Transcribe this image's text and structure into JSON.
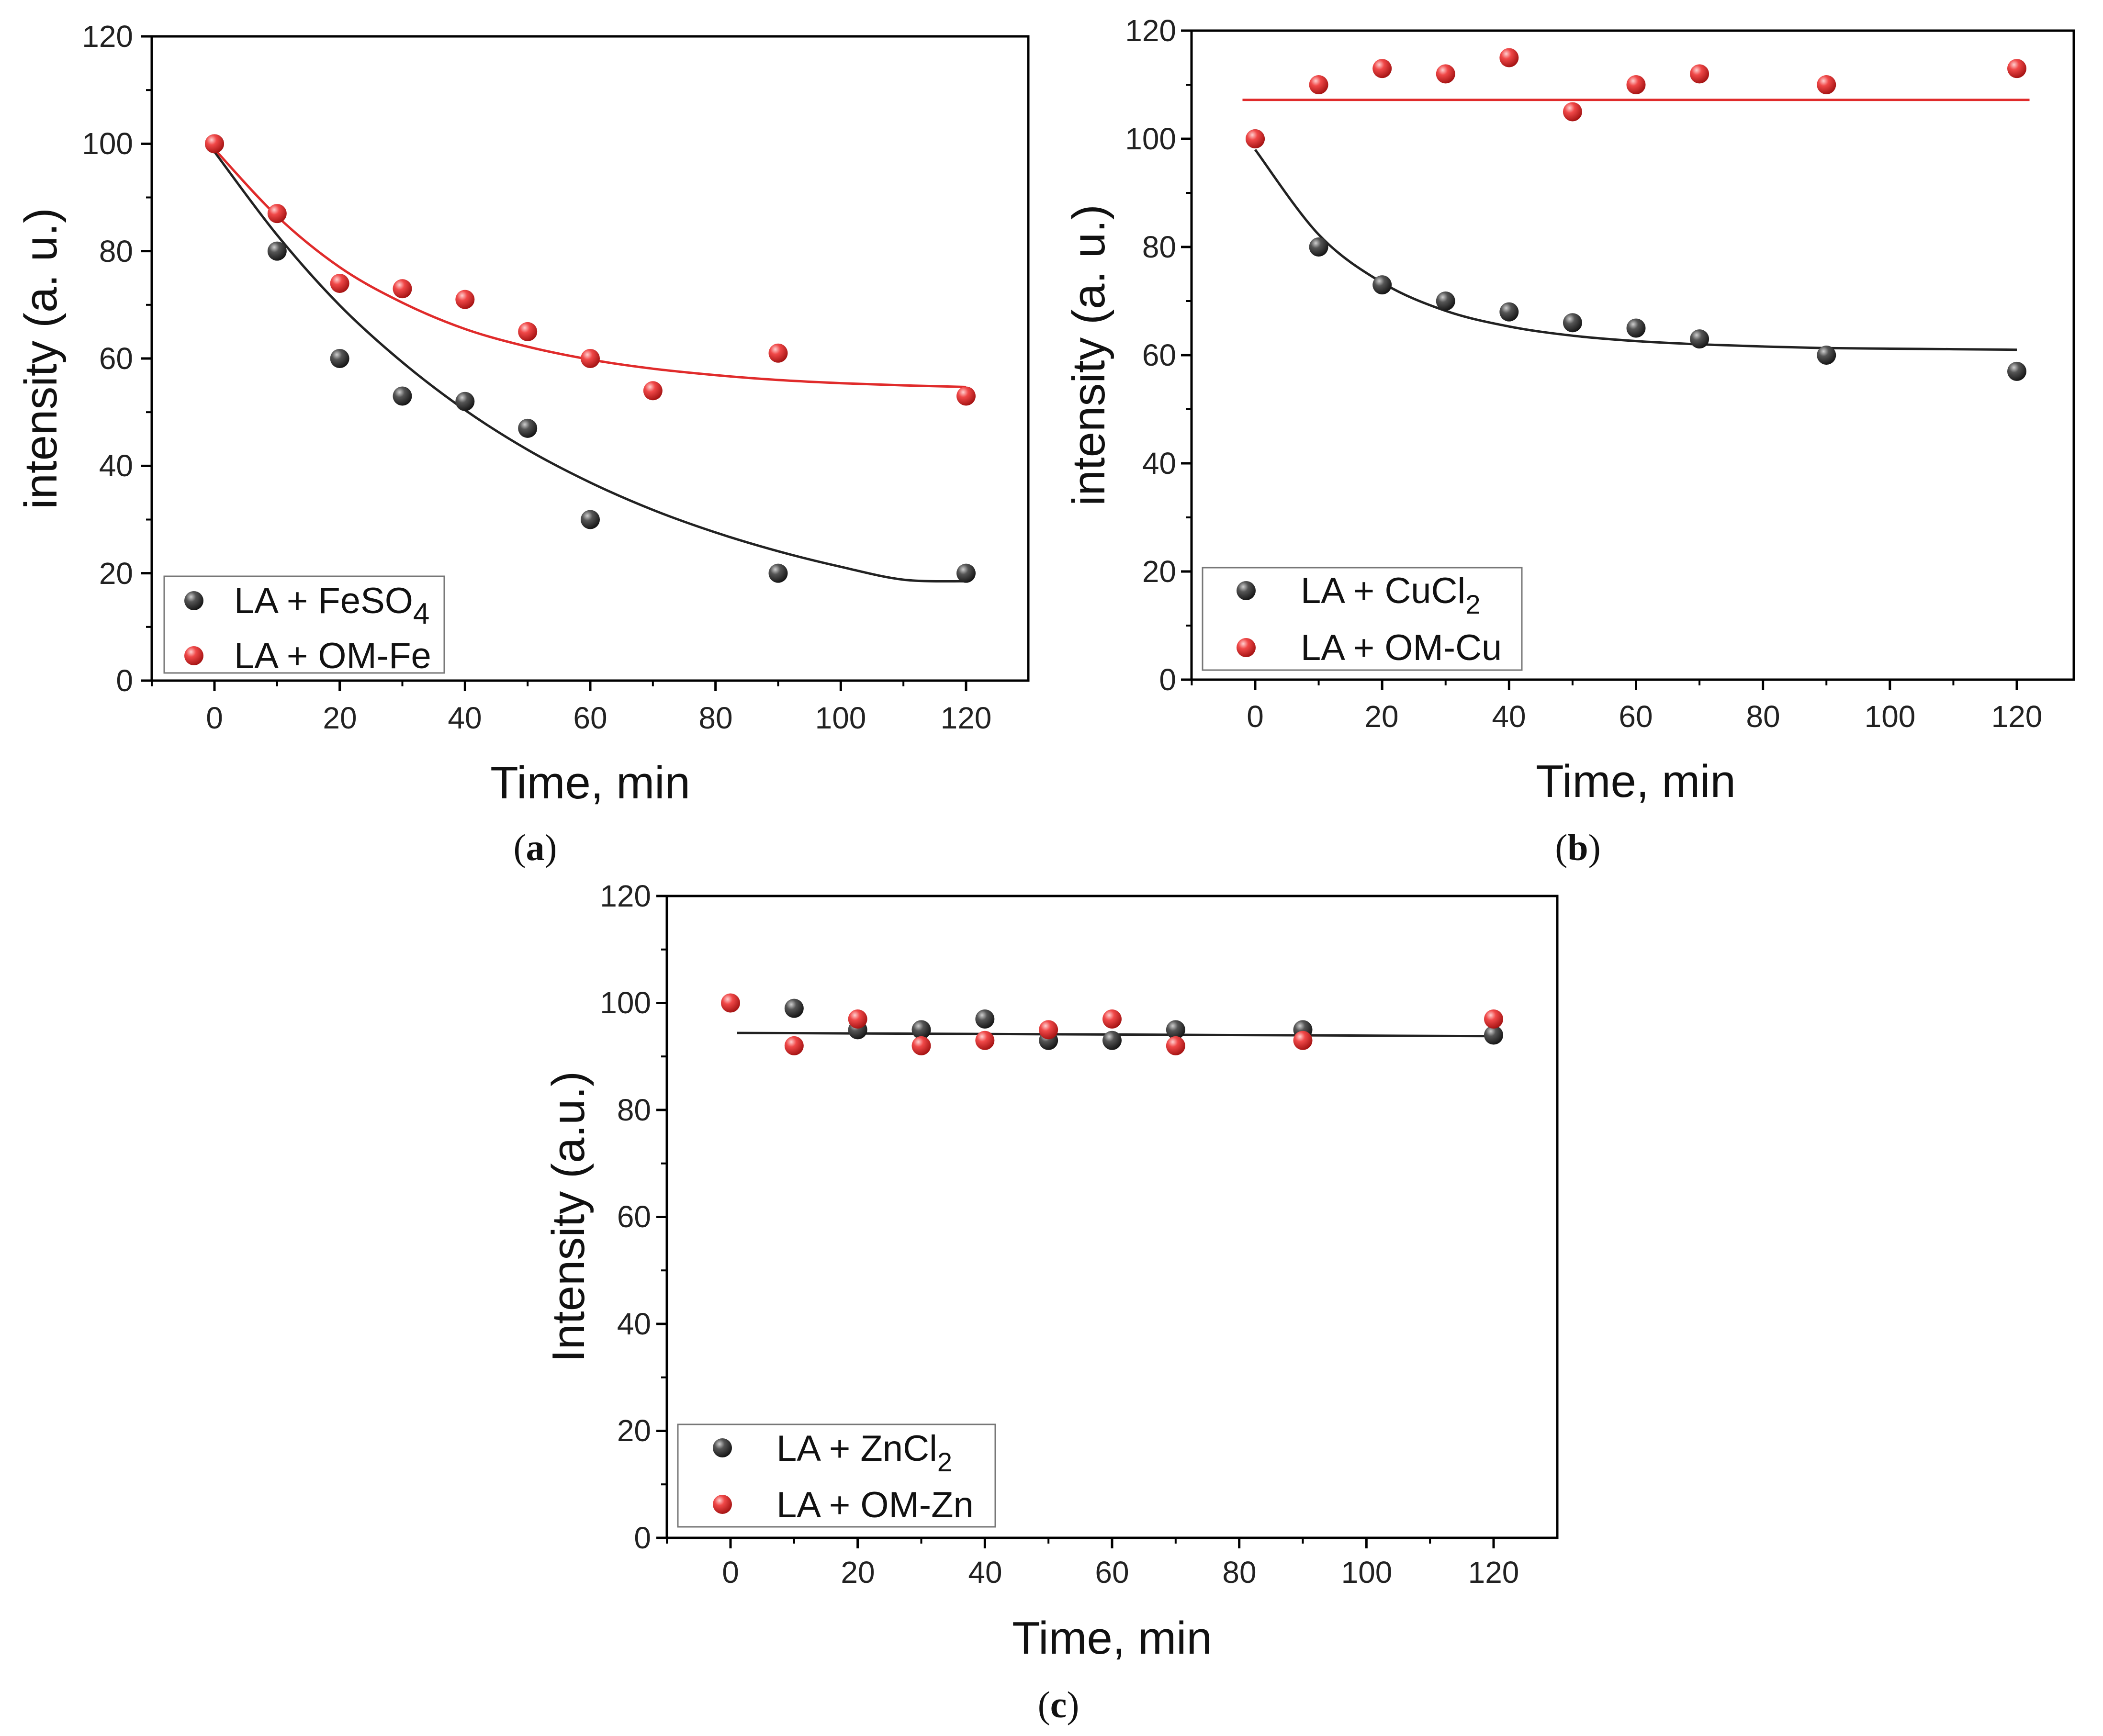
{
  "figure": {
    "colors": {
      "series_black": "#3a3a3a",
      "series_red": "#e8373d",
      "fit_black": "#222222",
      "fit_red": "#e02b2b",
      "axis": "#000000"
    }
  },
  "chart_data": [
    {
      "type": "scatter",
      "panel_label": "a",
      "title": "",
      "xlabel": "Time, min",
      "ylabel": "intensity (a. u.)",
      "xlim": [
        -10,
        130
      ],
      "ylim": [
        0,
        120
      ],
      "xticks": [
        "0",
        "20",
        "40",
        "60",
        "80",
        "100",
        "120"
      ],
      "yticks": [
        "0",
        "20",
        "40",
        "60",
        "80",
        "100",
        "120"
      ],
      "legend_position": "bottom-left",
      "series": [
        {
          "name": "LA + FeSO4",
          "legend_main": "LA + FeSO",
          "legend_sub": "4",
          "color": "#3a3a3a",
          "x": [
            0,
            10,
            20,
            30,
            40,
            50,
            60,
            90,
            120
          ],
          "y": [
            100,
            80,
            60,
            53,
            52,
            47,
            30,
            20,
            20
          ],
          "fit": {
            "type": "exponential",
            "x": [
              0,
              10,
              20,
              30,
              40,
              50,
              60,
              70,
              80,
              90,
              100,
              110,
              120
            ],
            "y": [
              98.5,
              83.0,
              69.9,
              59.3,
              50.4,
              43.0,
              36.9,
              31.8,
              27.6,
              24.1,
              21.2,
              18.8,
              18.5
            ]
          }
        },
        {
          "name": "LA + OM-Fe",
          "legend_main": "LA + OM-Fe",
          "legend_sub": "",
          "color": "#e8373d",
          "x": [
            0,
            10,
            20,
            30,
            40,
            50,
            60,
            70,
            90,
            120
          ],
          "y": [
            100,
            87,
            74,
            73,
            71,
            65,
            60,
            54,
            61,
            53
          ],
          "fit": {
            "type": "exponential",
            "x": [
              0,
              10,
              20,
              30,
              40,
              50,
              60,
              70,
              80,
              90,
              100,
              110,
              120
            ],
            "y": [
              99.0,
              86.5,
              77.0,
              70.4,
              65.5,
              62.2,
              59.8,
              58.1,
              56.9,
              56.0,
              55.4,
              55.0,
              54.7
            ]
          }
        }
      ]
    },
    {
      "type": "scatter",
      "panel_label": "b",
      "title": "",
      "xlabel": "Time, min",
      "ylabel": "intensity (a. u.)",
      "xlim": [
        -10,
        130
      ],
      "ylim": [
        0,
        120
      ],
      "xticks": [
        "0",
        "20",
        "40",
        "60",
        "80",
        "100",
        "120"
      ],
      "yticks": [
        "0",
        "20",
        "40",
        "60",
        "80",
        "100",
        "120"
      ],
      "legend_position": "bottom-left",
      "series": [
        {
          "name": "LA + CuCl2",
          "legend_main": "LA + CuCl",
          "legend_sub": "2",
          "color": "#3a3a3a",
          "x": [
            0,
            10,
            20,
            30,
            40,
            50,
            60,
            70,
            90,
            120
          ],
          "y": [
            100,
            80,
            73,
            70,
            68,
            66,
            65,
            63,
            60,
            57
          ],
          "fit": {
            "type": "exponential",
            "x": [
              0,
              10,
              20,
              30,
              40,
              50,
              60,
              70,
              80,
              90,
              100,
              110,
              120
            ],
            "y": [
              98.0,
              82.3,
              73.4,
              68.2,
              65.3,
              63.6,
              62.6,
              62.0,
              61.6,
              61.3,
              61.2,
              61.1,
              61.0
            ]
          }
        },
        {
          "name": "LA + OM-Cu",
          "legend_main": "LA + OM-Cu",
          "legend_sub": "",
          "color": "#e8373d",
          "x": [
            0,
            10,
            20,
            30,
            40,
            50,
            60,
            70,
            90,
            120
          ],
          "y": [
            100,
            110,
            113,
            112,
            115,
            105,
            110,
            112,
            110,
            113
          ],
          "fit": {
            "type": "constant",
            "x": [
              -2,
              122
            ],
            "y": [
              107.2,
              107.2
            ]
          }
        }
      ]
    },
    {
      "type": "scatter",
      "panel_label": "c",
      "title": "",
      "xlabel": "Time, min",
      "ylabel": "Intensity (a.u.)",
      "xlim": [
        -10,
        130
      ],
      "ylim": [
        0,
        120
      ],
      "xticks": [
        "0",
        "20",
        "40",
        "60",
        "80",
        "100",
        "120"
      ],
      "yticks": [
        "0",
        "20",
        "40",
        "60",
        "80",
        "100",
        "120"
      ],
      "legend_position": "bottom-left",
      "series": [
        {
          "name": "LA + ZnCl2",
          "legend_main": "LA + ZnCl",
          "legend_sub": "2",
          "color": "#3a3a3a",
          "x": [
            10,
            20,
            30,
            40,
            50,
            60,
            70,
            90,
            120
          ],
          "y": [
            99,
            95,
            95,
            97,
            93,
            93,
            95,
            95,
            94
          ],
          "fit": {
            "type": "linear",
            "x": [
              1,
              120
            ],
            "y": [
              94.4,
              93.8
            ]
          }
        },
        {
          "name": "LA + OM-Zn",
          "legend_main": "LA + OM-Zn",
          "legend_sub": "",
          "color": "#e8373d",
          "x": [
            0,
            10,
            20,
            30,
            40,
            50,
            60,
            70,
            90,
            120
          ],
          "y": [
            100,
            92,
            97,
            92,
            93,
            95,
            97,
            92,
            93,
            97
          ],
          "fit": null
        }
      ]
    }
  ]
}
